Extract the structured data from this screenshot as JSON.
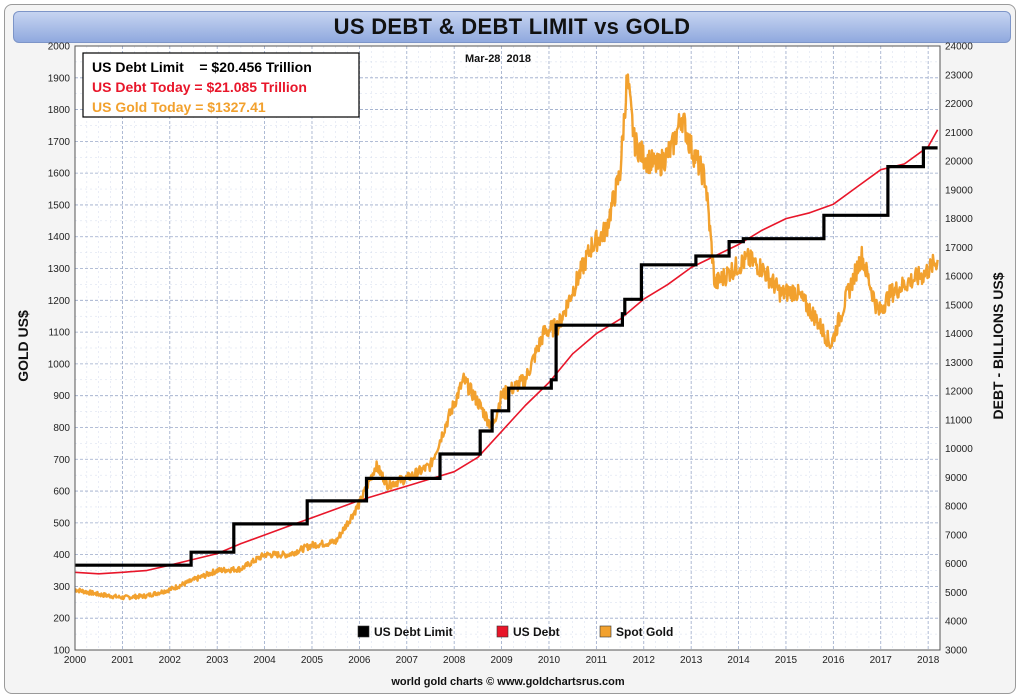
{
  "chart_data": {
    "type": "line",
    "title": "US DEBT & DEBT LIMIT vs GOLD",
    "date_label": "Mar-28  2018",
    "source": "world gold charts © www.goldchartsrus.com",
    "ylabel_left": "GOLD US$",
    "ylabel_right": "DEBT - BILLIONS US$",
    "x_range": [
      2000,
      2018.25
    ],
    "x_ticks": [
      "2000",
      "2001",
      "2002",
      "2003",
      "2004",
      "2005",
      "2006",
      "2007",
      "2008",
      "2009",
      "2010",
      "2011",
      "2012",
      "2013",
      "2014",
      "2015",
      "2016",
      "2017",
      "2018"
    ],
    "y_left_range": [
      100,
      2000
    ],
    "y_left_ticks": [
      "100",
      "200",
      "300",
      "400",
      "500",
      "600",
      "700",
      "800",
      "900",
      "1000",
      "1100",
      "1200",
      "1300",
      "1400",
      "1500",
      "1600",
      "1700",
      "1800",
      "1900",
      "2000"
    ],
    "y_right_range": [
      3000,
      24000
    ],
    "y_right_ticks": [
      "3000",
      "4000",
      "5000",
      "6000",
      "7000",
      "8000",
      "9000",
      "10000",
      "11000",
      "12000",
      "13000",
      "14000",
      "15000",
      "16000",
      "17000",
      "18000",
      "19000",
      "20000",
      "21000",
      "22000",
      "23000",
      "24000"
    ],
    "grid": true,
    "info_box": {
      "line1": "US Debt Limit    = $20.456 Trillion",
      "line2": "US Debt Today = $21.085 Trillion",
      "line3": "US Gold Today = $1327.41"
    },
    "legend": {
      "placement": "bottom-center",
      "items": [
        {
          "label": "US Debt Limit",
          "color": "#000000"
        },
        {
          "label": "US Debt",
          "color": "#e8162a"
        },
        {
          "label": "Spot Gold",
          "color": "#f2a12e"
        }
      ]
    },
    "series": [
      {
        "name": "US Debt Limit",
        "axis": "right",
        "color": "#000000",
        "step": true,
        "x": [
          2000,
          2002.45,
          2003.35,
          2004.9,
          2006.15,
          2007.7,
          2008.55,
          2008.8,
          2009.15,
          2010.05,
          2010.15,
          2011.55,
          2011.6,
          2011.95,
          2013.1,
          2013.8,
          2014.1,
          2015.8,
          2017.15,
          2017.9,
          2018.2
        ],
        "y": [
          5950,
          6400,
          7384,
          8184,
          8965,
          9815,
          10615,
          11315,
          12104,
          12394,
          14294,
          14694,
          15194,
          16394,
          16699,
          17200,
          17300,
          18113,
          19808,
          20456,
          20456
        ]
      },
      {
        "name": "US Debt",
        "axis": "right",
        "color": "#e8162a",
        "x": [
          2000,
          2000.5,
          2001,
          2001.5,
          2002,
          2002.5,
          2003,
          2003.5,
          2004,
          2004.5,
          2005,
          2005.5,
          2006,
          2006.5,
          2007,
          2007.5,
          2008,
          2008.5,
          2009,
          2009.5,
          2010,
          2010.5,
          2011,
          2011.5,
          2012,
          2012.5,
          2013,
          2013.5,
          2014,
          2014.5,
          2015,
          2015.5,
          2016,
          2016.5,
          2017,
          2017.5,
          2018,
          2018.2
        ],
        "y": [
          5700,
          5650,
          5700,
          5760,
          5950,
          6150,
          6350,
          6700,
          7000,
          7300,
          7600,
          7900,
          8200,
          8450,
          8700,
          8950,
          9200,
          9700,
          10600,
          11500,
          12300,
          13300,
          14000,
          14500,
          15200,
          15700,
          16300,
          16700,
          17100,
          17600,
          18000,
          18200,
          18500,
          19100,
          19700,
          19900,
          20500,
          21085
        ]
      },
      {
        "name": "Spot Gold",
        "axis": "left",
        "color": "#f2a12e",
        "x": [
          2000,
          2000.5,
          2001,
          2001.5,
          2002,
          2002.5,
          2003,
          2003.5,
          2004,
          2004.5,
          2005,
          2005.5,
          2006,
          2006.35,
          2006.6,
          2007,
          2007.5,
          2007.8,
          2008.2,
          2008.5,
          2008.8,
          2009,
          2009.5,
          2009.9,
          2010.2,
          2010.5,
          2010.9,
          2011.2,
          2011.5,
          2011.65,
          2011.8,
          2012,
          2012.3,
          2012.6,
          2012.8,
          2013,
          2013.3,
          2013.5,
          2013.9,
          2014.2,
          2014.5,
          2014.9,
          2015.2,
          2015.6,
          2015.95,
          2016.3,
          2016.6,
          2016.95,
          2017.2,
          2017.6,
          2017.9,
          2018.2
        ],
        "y": [
          290,
          275,
          265,
          270,
          290,
          320,
          350,
          355,
          400,
          400,
          430,
          440,
          560,
          680,
          620,
          640,
          680,
          800,
          950,
          880,
          800,
          900,
          950,
          1100,
          1120,
          1230,
          1370,
          1420,
          1600,
          1900,
          1700,
          1650,
          1620,
          1680,
          1780,
          1680,
          1580,
          1250,
          1300,
          1330,
          1300,
          1220,
          1230,
          1150,
          1060,
          1220,
          1340,
          1160,
          1220,
          1260,
          1280,
          1327
        ]
      }
    ]
  }
}
